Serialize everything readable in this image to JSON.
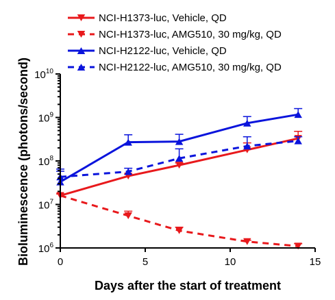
{
  "chart_data": {
    "type": "line",
    "xlabel": "Days after the start of treatment",
    "ylabel": "Bioluminescence (photons/second)",
    "xlim": [
      0,
      15
    ],
    "ylim": [
      1000000,
      10000000000
    ],
    "yscale": "log",
    "x_ticks": [
      0,
      5,
      10,
      15
    ],
    "y_ticks": [
      {
        "base": "10",
        "exp": "6",
        "value": 1000000
      },
      {
        "base": "10",
        "exp": "7",
        "value": 10000000
      },
      {
        "base": "10",
        "exp": "8",
        "value": 100000000
      },
      {
        "base": "10",
        "exp": "9",
        "value": 1000000000
      },
      {
        "base": "10",
        "exp": "10",
        "value": 10000000000
      }
    ],
    "legend_position": "top",
    "series": [
      {
        "name": "NCI-H1373-luc, Vehicle, QD",
        "color": "#e8191c",
        "dash": "solid",
        "marker": "triangle-down",
        "x": [
          0,
          4,
          7,
          11,
          14
        ],
        "y": [
          16000000,
          45000000,
          80000000,
          180000000,
          330000000
        ],
        "err_upper": [
          17500000,
          50000000,
          90000000,
          260000000,
          480000000
        ]
      },
      {
        "name": "NCI-H1373-luc, AMG510, 30 mg/kg, QD",
        "color": "#e8191c",
        "dash": "dash",
        "marker": "triangle-down",
        "x": [
          0,
          4,
          7,
          11,
          14
        ],
        "y": [
          16000000,
          5500000,
          2500000,
          1400000,
          1100000
        ],
        "err_upper": [
          17500000,
          7000000,
          3000000,
          1500000,
          1250000
        ]
      },
      {
        "name": "NCI-H2122-luc, Vehicle, QD",
        "color": "#0a14dc",
        "dash": "solid",
        "marker": "triangle-up",
        "x": [
          0,
          4,
          7,
          11,
          14
        ],
        "y": [
          33000000,
          270000000,
          280000000,
          740000000,
          1170000000
        ],
        "err_upper": [
          65000000,
          400000000,
          410000000,
          1050000000,
          1600000000
        ]
      },
      {
        "name": "NCI-H2122-luc, AMG510, 30 mg/kg, QD",
        "color": "#0a14dc",
        "dash": "dash",
        "marker": "triangle-up",
        "x": [
          0,
          4,
          7,
          11,
          14
        ],
        "y": [
          43000000,
          57000000,
          115000000,
          220000000,
          290000000
        ],
        "err_upper": [
          58000000,
          68000000,
          190000000,
          360000000,
          360000000
        ]
      }
    ]
  }
}
